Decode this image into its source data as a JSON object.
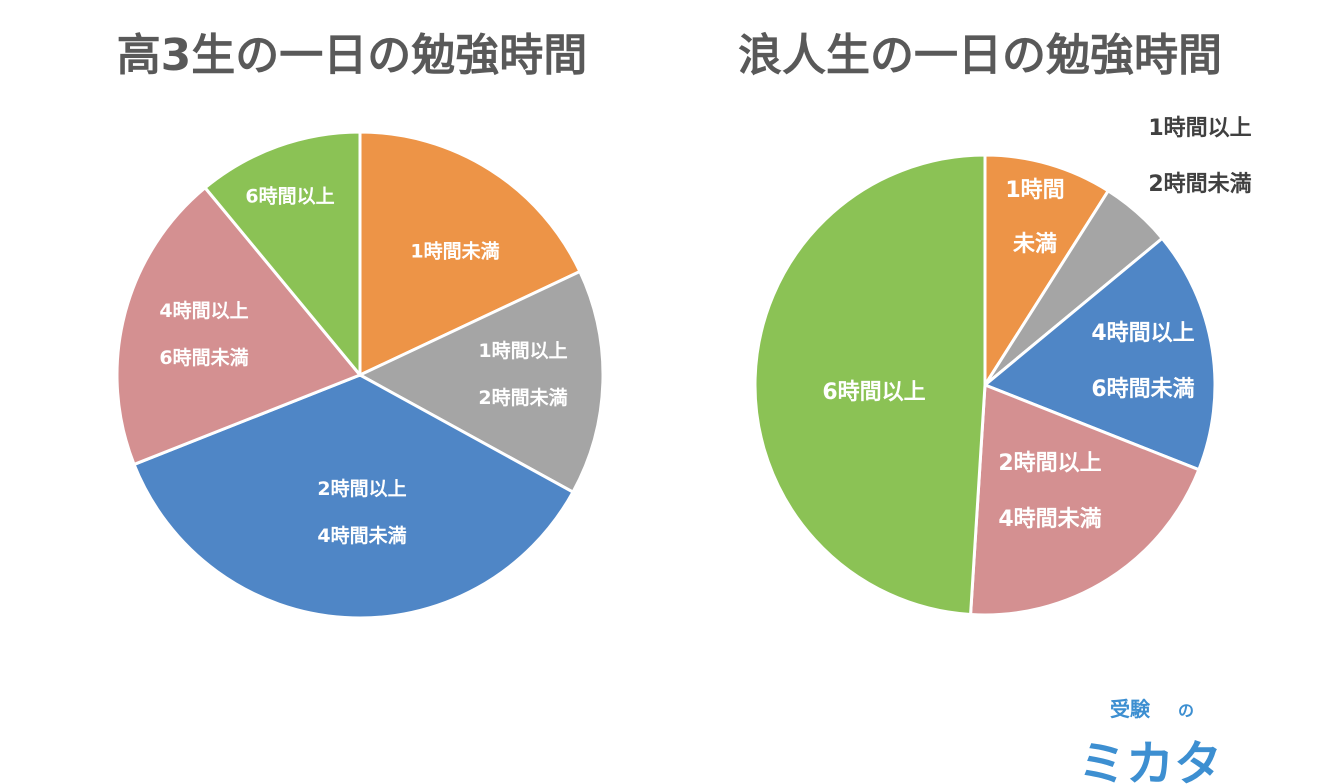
{
  "chart_data": [
    {
      "type": "pie",
      "title": "高3生の一日の勉強時間",
      "categories": [
        "1時間未満",
        "1時間以上2時間未満",
        "2時間以上4時間未満",
        "4時間以上6時間未満",
        "6時間以上"
      ],
      "label_lines": [
        [
          "1時間未満"
        ],
        [
          "1時間以上",
          "2時間未満"
        ],
        [
          "2時間以上",
          "4時間未満"
        ],
        [
          "4時間以上",
          "6時間未満"
        ],
        [
          "6時間以上"
        ]
      ],
      "values": [
        18,
        15,
        36,
        20,
        11
      ],
      "colors": [
        "#ed9447",
        "#a5a5a5",
        "#4f86c6",
        "#d49091",
        "#8bc255"
      ]
    },
    {
      "type": "pie",
      "title": "浪人生の一日の勉強時間",
      "categories": [
        "1時間未満",
        "1時間以上2時間未満",
        "4時間以上6時間未満",
        "2時間以上4時間未満",
        "6時間以上"
      ],
      "label_lines": [
        [
          "1時間",
          "未満"
        ],
        [
          "1時間以上",
          "2時間未満"
        ],
        [
          "4時間以上",
          "6時間未満"
        ],
        [
          "2時間以上",
          "4時間未満"
        ],
        [
          "6時間以上"
        ]
      ],
      "values": [
        9,
        5,
        17,
        20,
        49
      ],
      "colors": [
        "#ed9447",
        "#a5a5a5",
        "#4f86c6",
        "#d49091",
        "#8bc255"
      ]
    }
  ],
  "logo": {
    "top_text": "受験",
    "small_text": "の",
    "main_text": "ミカタ"
  }
}
